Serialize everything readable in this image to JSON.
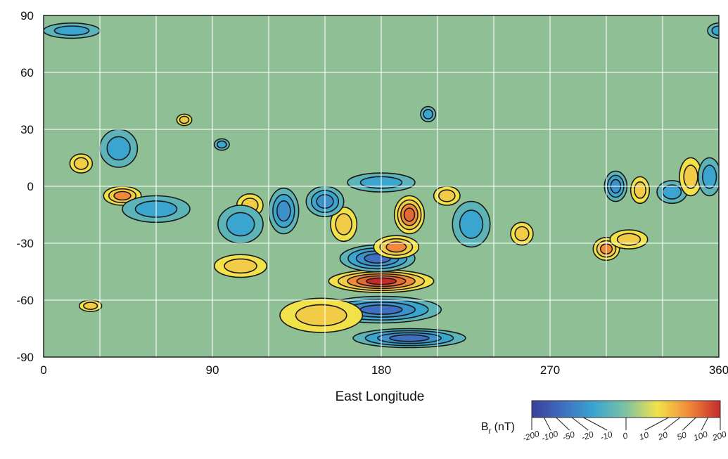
{
  "chart_data": {
    "type": "heatmap",
    "xlabel": "East Longitude",
    "ylabel": "",
    "xlim": [
      0,
      360
    ],
    "ylim": [
      -90,
      90
    ],
    "x_ticks": [
      "0",
      "90",
      "180",
      "270",
      "360"
    ],
    "y_ticks": [
      "90",
      "60",
      "30",
      "0",
      "-30",
      "-60",
      "-90"
    ],
    "grid": true,
    "colorbar": {
      "label_main": "B",
      "label_sub": "r",
      "label_unit": " (nT)",
      "range": [
        -200,
        200
      ],
      "stops": [
        {
          "value": -200,
          "color": "#3a3f9a"
        },
        {
          "value": -100,
          "color": "#3f6fc0"
        },
        {
          "value": -20,
          "color": "#3aa6d0"
        },
        {
          "value": 0,
          "color": "#7fc2a0"
        },
        {
          "value": 10,
          "color": "#f2e24a"
        },
        {
          "value": 50,
          "color": "#f08a3a"
        },
        {
          "value": 200,
          "color": "#c62a2a"
        }
      ],
      "ticks": [
        {
          "value": -200,
          "label": "-200"
        },
        {
          "value": -100,
          "label": "-100"
        },
        {
          "value": -50,
          "label": "-50"
        },
        {
          "value": -20,
          "label": "-20"
        },
        {
          "value": -10,
          "label": "-10"
        },
        {
          "value": 0,
          "label": "0"
        },
        {
          "value": 10,
          "label": "10"
        },
        {
          "value": 20,
          "label": "20"
        },
        {
          "value": 50,
          "label": "50"
        },
        {
          "value": 100,
          "label": "100"
        },
        {
          "value": 200,
          "label": "200"
        }
      ]
    },
    "background_color": "#8fbf95",
    "anomalies": [
      {
        "lon": 180,
        "lat": -50,
        "value": 200,
        "rx": 28,
        "ry": 6
      },
      {
        "lon": 180,
        "lat": -65,
        "value": -150,
        "rx": 32,
        "ry": 7
      },
      {
        "lon": 195,
        "lat": -80,
        "value": -100,
        "rx": 30,
        "ry": 5
      },
      {
        "lon": 148,
        "lat": -68,
        "value": 40,
        "rx": 22,
        "ry": 9
      },
      {
        "lon": 178,
        "lat": -38,
        "value": -120,
        "rx": 20,
        "ry": 7
      },
      {
        "lon": 195,
        "lat": -15,
        "value": 150,
        "rx": 8,
        "ry": 10
      },
      {
        "lon": 188,
        "lat": -32,
        "value": 60,
        "rx": 12,
        "ry": 6
      },
      {
        "lon": 160,
        "lat": -20,
        "value": 30,
        "rx": 7,
        "ry": 9
      },
      {
        "lon": 150,
        "lat": -8,
        "value": -60,
        "rx": 10,
        "ry": 8
      },
      {
        "lon": 180,
        "lat": 2,
        "value": -40,
        "rx": 18,
        "ry": 5
      },
      {
        "lon": 215,
        "lat": -5,
        "value": 30,
        "rx": 7,
        "ry": 5
      },
      {
        "lon": 228,
        "lat": -20,
        "value": -40,
        "rx": 10,
        "ry": 12
      },
      {
        "lon": 42,
        "lat": -5,
        "value": 80,
        "rx": 10,
        "ry": 5
      },
      {
        "lon": 20,
        "lat": 12,
        "value": 30,
        "rx": 6,
        "ry": 5
      },
      {
        "lon": 40,
        "lat": 20,
        "value": -40,
        "rx": 10,
        "ry": 10
      },
      {
        "lon": 60,
        "lat": -12,
        "value": -40,
        "rx": 18,
        "ry": 7
      },
      {
        "lon": 110,
        "lat": -10,
        "value": 40,
        "rx": 7,
        "ry": 6
      },
      {
        "lon": 105,
        "lat": -20,
        "value": -40,
        "rx": 12,
        "ry": 10
      },
      {
        "lon": 105,
        "lat": -42,
        "value": 30,
        "rx": 14,
        "ry": 6
      },
      {
        "lon": 128,
        "lat": -13,
        "value": -50,
        "rx": 8,
        "ry": 12
      },
      {
        "lon": 255,
        "lat": -25,
        "value": 40,
        "rx": 6,
        "ry": 6
      },
      {
        "lon": 300,
        "lat": -33,
        "value": 50,
        "rx": 7,
        "ry": 6
      },
      {
        "lon": 312,
        "lat": -28,
        "value": 30,
        "rx": 10,
        "ry": 5
      },
      {
        "lon": 305,
        "lat": 0,
        "value": -60,
        "rx": 6,
        "ry": 8
      },
      {
        "lon": 318,
        "lat": -2,
        "value": 30,
        "rx": 5,
        "ry": 7
      },
      {
        "lon": 335,
        "lat": -3,
        "value": -40,
        "rx": 8,
        "ry": 6
      },
      {
        "lon": 345,
        "lat": 5,
        "value": 30,
        "rx": 6,
        "ry": 10
      },
      {
        "lon": 355,
        "lat": 5,
        "value": -40,
        "rx": 6,
        "ry": 10
      },
      {
        "lon": 15,
        "lat": 82,
        "value": -40,
        "rx": 15,
        "ry": 4
      },
      {
        "lon": 360,
        "lat": 82,
        "value": -40,
        "rx": 6,
        "ry": 4
      },
      {
        "lon": 25,
        "lat": -63,
        "value": 30,
        "rx": 6,
        "ry": 3
      },
      {
        "lon": 205,
        "lat": 38,
        "value": -30,
        "rx": 4,
        "ry": 4
      },
      {
        "lon": 95,
        "lat": 22,
        "value": -30,
        "rx": 4,
        "ry": 3
      },
      {
        "lon": 75,
        "lat": 35,
        "value": 30,
        "rx": 4,
        "ry": 3
      }
    ]
  }
}
